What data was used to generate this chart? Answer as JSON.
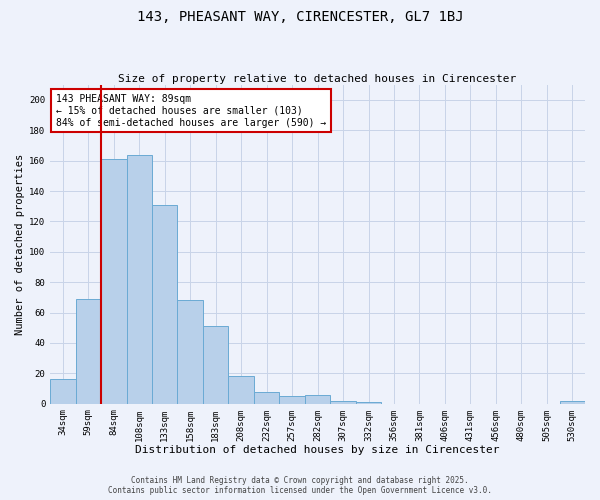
{
  "title": "143, PHEASANT WAY, CIRENCESTER, GL7 1BJ",
  "subtitle": "Size of property relative to detached houses in Cirencester",
  "xlabel": "Distribution of detached houses by size in Cirencester",
  "ylabel": "Number of detached properties",
  "bar_labels": [
    "34sqm",
    "59sqm",
    "84sqm",
    "108sqm",
    "133sqm",
    "158sqm",
    "183sqm",
    "208sqm",
    "232sqm",
    "257sqm",
    "282sqm",
    "307sqm",
    "332sqm",
    "356sqm",
    "381sqm",
    "406sqm",
    "431sqm",
    "456sqm",
    "480sqm",
    "505sqm",
    "530sqm"
  ],
  "bar_values": [
    16,
    69,
    161,
    164,
    131,
    68,
    51,
    18,
    8,
    5,
    6,
    2,
    1,
    0,
    0,
    0,
    0,
    0,
    0,
    0,
    2
  ],
  "bar_color": "#b8d0ea",
  "bar_edge_color": "#6aaad4",
  "ylim": [
    0,
    210
  ],
  "yticks": [
    0,
    20,
    40,
    60,
    80,
    100,
    120,
    140,
    160,
    180,
    200
  ],
  "vline_x": 1.5,
  "vline_color": "#cc0000",
  "annotation_text": "143 PHEASANT WAY: 89sqm\n← 15% of detached houses are smaller (103)\n84% of semi-detached houses are larger (590) →",
  "annotation_box_color": "#ffffff",
  "annotation_box_edge": "#cc0000",
  "footer_line1": "Contains HM Land Registry data © Crown copyright and database right 2025.",
  "footer_line2": "Contains public sector information licensed under the Open Government Licence v3.0.",
  "background_color": "#eef2fb",
  "grid_color": "#c8d4e8",
  "title_fontsize": 10,
  "subtitle_fontsize": 8,
  "xlabel_fontsize": 8,
  "ylabel_fontsize": 7.5,
  "tick_fontsize": 6.5,
  "annotation_fontsize": 7,
  "footer_fontsize": 5.5
}
